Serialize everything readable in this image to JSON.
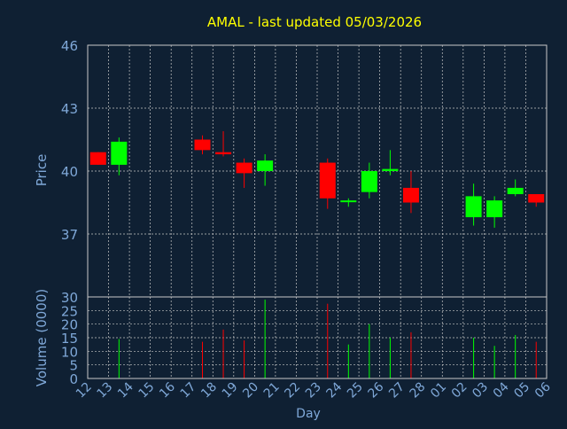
{
  "title": "AMAL - last updated 05/03/2026",
  "colors": {
    "background": "#0f2033",
    "title": "#ffff00",
    "axis_label": "#7fa8d8",
    "grid": "#c8c8c8",
    "frame": "#c8c8c8",
    "up": "#00ff00",
    "down": "#ff0000",
    "wick_up": "#00ff00",
    "wick_down": "#ff0000"
  },
  "chart_data": [
    {
      "type": "candlestick",
      "ylabel": "Price",
      "ylim": [
        34,
        46
      ],
      "yticks": [
        37,
        40,
        43,
        46
      ],
      "grid": true,
      "x_categories": [
        "12",
        "13",
        "14",
        "15",
        "16",
        "17",
        "18",
        "19",
        "20",
        "21",
        "22",
        "23",
        "24",
        "25",
        "26",
        "27",
        "28",
        "01",
        "02",
        "03",
        "04",
        "05",
        "06"
      ],
      "candles": [
        {
          "x": "12",
          "open": 40.9,
          "high": 40.9,
          "low": 40.3,
          "close": 40.3
        },
        {
          "x": "13",
          "open": 40.3,
          "high": 41.6,
          "low": 39.8,
          "close": 41.4
        },
        {
          "x": "17",
          "open": 41.5,
          "high": 41.7,
          "low": 40.8,
          "close": 41.0
        },
        {
          "x": "18",
          "open": 40.9,
          "high": 41.9,
          "low": 40.7,
          "close": 40.8
        },
        {
          "x": "19",
          "open": 40.4,
          "high": 40.6,
          "low": 39.2,
          "close": 39.9
        },
        {
          "x": "20",
          "open": 40.0,
          "high": 40.8,
          "low": 39.3,
          "close": 40.5
        },
        {
          "x": "23",
          "open": 40.4,
          "high": 40.6,
          "low": 38.2,
          "close": 38.7
        },
        {
          "x": "24",
          "open": 38.6,
          "high": 38.7,
          "low": 38.3,
          "close": 38.6
        },
        {
          "x": "25",
          "open": 39.0,
          "high": 40.4,
          "low": 38.7,
          "close": 40.0
        },
        {
          "x": "26",
          "open": 40.0,
          "high": 41.0,
          "low": 39.8,
          "close": 40.1
        },
        {
          "x": "27",
          "open": 39.2,
          "high": 40.0,
          "low": 38.0,
          "close": 38.5
        },
        {
          "x": "02",
          "open": 37.8,
          "high": 39.4,
          "low": 37.4,
          "close": 38.8
        },
        {
          "x": "03",
          "open": 37.8,
          "high": 38.8,
          "low": 37.3,
          "close": 38.6
        },
        {
          "x": "04",
          "open": 38.9,
          "high": 39.6,
          "low": 38.8,
          "close": 39.2
        },
        {
          "x": "05",
          "open": 38.9,
          "high": 38.9,
          "low": 38.3,
          "close": 38.5
        }
      ]
    },
    {
      "type": "bar",
      "ylabel": "Volume (0000)",
      "xlabel": "Day",
      "ylim": [
        0,
        30
      ],
      "yticks": [
        0,
        5,
        10,
        15,
        20,
        25,
        30
      ],
      "grid": true,
      "categories": [
        "12",
        "13",
        "14",
        "15",
        "16",
        "17",
        "18",
        "19",
        "20",
        "21",
        "22",
        "23",
        "24",
        "25",
        "26",
        "27",
        "28",
        "01",
        "02",
        "03",
        "04",
        "05",
        "06"
      ],
      "bars": [
        {
          "x": "13",
          "value": 14.5,
          "direction": "up"
        },
        {
          "x": "17",
          "value": 13.5,
          "direction": "down"
        },
        {
          "x": "18",
          "value": 18.0,
          "direction": "down"
        },
        {
          "x": "19",
          "value": 14.0,
          "direction": "down"
        },
        {
          "x": "20",
          "value": 29.0,
          "direction": "up"
        },
        {
          "x": "23",
          "value": 27.5,
          "direction": "down"
        },
        {
          "x": "24",
          "value": 12.5,
          "direction": "up"
        },
        {
          "x": "25",
          "value": 20.0,
          "direction": "up"
        },
        {
          "x": "26",
          "value": 15.0,
          "direction": "up"
        },
        {
          "x": "27",
          "value": 17.0,
          "direction": "down"
        },
        {
          "x": "02",
          "value": 15.0,
          "direction": "up"
        },
        {
          "x": "03",
          "value": 12.0,
          "direction": "up"
        },
        {
          "x": "04",
          "value": 16.0,
          "direction": "up"
        },
        {
          "x": "05",
          "value": 13.5,
          "direction": "down"
        }
      ]
    }
  ]
}
